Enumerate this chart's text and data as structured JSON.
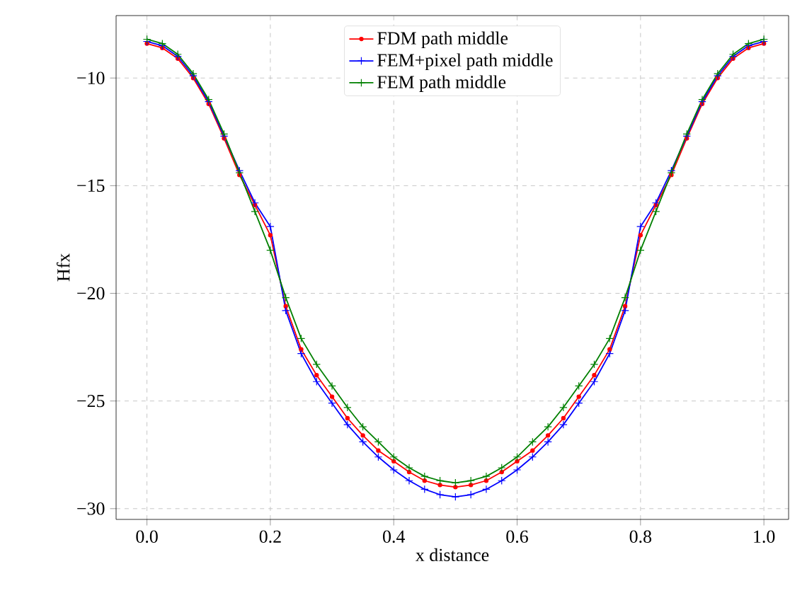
{
  "chart_data": {
    "type": "line",
    "xlabel": "x distance",
    "ylabel": "Hfx",
    "x": [
      0,
      0.025,
      0.05,
      0.075,
      0.1,
      0.125,
      0.15,
      0.175,
      0.2,
      0.225,
      0.25,
      0.275,
      0.3,
      0.325,
      0.35,
      0.375,
      0.4,
      0.425,
      0.45,
      0.475,
      0.5,
      0.525,
      0.55,
      0.575,
      0.6,
      0.625,
      0.65,
      0.675,
      0.7,
      0.725,
      0.75,
      0.775,
      0.8,
      0.825,
      0.85,
      0.875,
      0.9,
      0.925,
      0.95,
      0.975,
      1.0
    ],
    "series": [
      {
        "name": "FDM path middle",
        "color": "#ff0000",
        "marker": "circle",
        "values": [
          -8.4,
          -8.6,
          -9.1,
          -10.0,
          -11.2,
          -12.8,
          -14.5,
          -15.9,
          -17.3,
          -20.6,
          -22.6,
          -23.8,
          -24.8,
          -25.8,
          -26.6,
          -27.3,
          -27.8,
          -28.3,
          -28.7,
          -28.9,
          -29.0,
          -28.9,
          -28.7,
          -28.3,
          -27.8,
          -27.3,
          -26.6,
          -25.8,
          -24.8,
          -23.8,
          -22.6,
          -20.6,
          -17.3,
          -15.9,
          -14.5,
          -12.8,
          -11.2,
          -10.0,
          -9.1,
          -8.6,
          -8.4
        ]
      },
      {
        "name": "FEM+pixel path middle",
        "color": "#0000ff",
        "marker": "cross",
        "values": [
          -8.3,
          -8.5,
          -9.0,
          -9.9,
          -11.1,
          -12.7,
          -14.3,
          -15.8,
          -16.9,
          -20.8,
          -22.8,
          -24.1,
          -25.1,
          -26.1,
          -26.9,
          -27.6,
          -28.2,
          -28.7,
          -29.1,
          -29.35,
          -29.45,
          -29.35,
          -29.1,
          -28.7,
          -28.2,
          -27.6,
          -26.9,
          -26.1,
          -25.1,
          -24.1,
          -22.8,
          -20.8,
          -16.9,
          -15.8,
          -14.3,
          -12.7,
          -11.1,
          -9.9,
          -9.0,
          -8.5,
          -8.3
        ]
      },
      {
        "name": "FEM path middle",
        "color": "#008000",
        "marker": "cross",
        "values": [
          -8.2,
          -8.4,
          -8.9,
          -9.8,
          -11.0,
          -12.6,
          -14.4,
          -16.2,
          -18.0,
          -20.2,
          -22.1,
          -23.3,
          -24.3,
          -25.3,
          -26.2,
          -26.9,
          -27.6,
          -28.1,
          -28.5,
          -28.7,
          -28.8,
          -28.7,
          -28.5,
          -28.1,
          -27.6,
          -26.9,
          -26.2,
          -25.3,
          -24.3,
          -23.3,
          -22.1,
          -20.2,
          -18.0,
          -16.2,
          -14.4,
          -12.6,
          -11.0,
          -9.8,
          -8.9,
          -8.4,
          -8.2
        ]
      }
    ],
    "xlim": [
      -0.05,
      1.04
    ],
    "ylim": [
      -30.5,
      -7.1
    ],
    "xticks": [
      {
        "value": 0,
        "label": "0.0"
      },
      {
        "value": 0.2,
        "label": "0.2"
      },
      {
        "value": 0.4,
        "label": "0.4"
      },
      {
        "value": 0.6,
        "label": "0.6"
      },
      {
        "value": 0.8,
        "label": "0.8"
      },
      {
        "value": 1.0,
        "label": "1.0"
      }
    ],
    "yticks": [
      {
        "value": -10,
        "label": "−10"
      },
      {
        "value": -15,
        "label": "−15"
      },
      {
        "value": -20,
        "label": "−20"
      },
      {
        "value": -25,
        "label": "−25"
      },
      {
        "value": -30,
        "label": "−30"
      }
    ],
    "grid": true,
    "legend": "top",
    "line_style": "solid"
  }
}
